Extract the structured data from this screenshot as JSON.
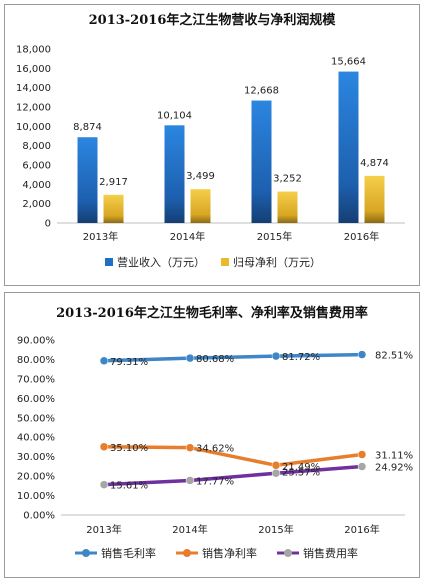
{
  "chart_data": [
    {
      "type": "bar",
      "title": "2013-2016年之江生物营收与净利润规模",
      "categories": [
        "2013年",
        "2014年",
        "2015年",
        "2016年"
      ],
      "series": [
        {
          "name": "营业收入（万元）",
          "values": [
            8874,
            10104,
            12668,
            15664
          ],
          "labels": [
            "8,874",
            "10,104",
            "12,668",
            "15,664"
          ],
          "color": "#1f6fc7"
        },
        {
          "name": "归母净利（万元）",
          "values": [
            2917,
            3499,
            3252,
            4874
          ],
          "labels": [
            "2,917",
            "3,499",
            "3,252",
            "4,874"
          ],
          "color": "#e8b92f"
        }
      ],
      "ylim": [
        0,
        18000
      ],
      "yticks": [
        0,
        2000,
        4000,
        6000,
        8000,
        10000,
        12000,
        14000,
        16000,
        18000
      ],
      "ytick_labels": [
        "0",
        "2,000",
        "4,000",
        "6,000",
        "8,000",
        "10,000",
        "12,000",
        "14,000",
        "16,000",
        "18,000"
      ],
      "grid": false,
      "legend_position": "bottom"
    },
    {
      "type": "line",
      "title": "2013-2016年之江生物毛利率、净利率及销售费用率",
      "categories": [
        "2013年",
        "2014年",
        "2015年",
        "2016年"
      ],
      "series": [
        {
          "name": "销售毛利率",
          "values": [
            79.31,
            80.68,
            81.72,
            82.51
          ],
          "labels": [
            "79.31%",
            "80.68%",
            "81.72%",
            "82.51%"
          ],
          "color": "#3f86c6"
        },
        {
          "name": "销售净利率",
          "values": [
            35.1,
            34.62,
            25.57,
            31.11
          ],
          "labels": [
            "35.10%",
            "34.62%",
            "25.57%",
            "31.11%"
          ],
          "color": "#e67e2e"
        },
        {
          "name": "销售费用率",
          "values": [
            15.61,
            17.77,
            21.49,
            24.92
          ],
          "labels": [
            "15.61%",
            "17.77%",
            "21.49%",
            "24.92%"
          ],
          "color": "#7030a0"
        }
      ],
      "marker_color": "#a6a6a6",
      "ylim": [
        0,
        90
      ],
      "yticks": [
        0,
        10,
        20,
        30,
        40,
        50,
        60,
        70,
        80,
        90
      ],
      "ytick_labels": [
        "0.00%",
        "10.00%",
        "20.00%",
        "30.00%",
        "40.00%",
        "50.00%",
        "60.00%",
        "70.00%",
        "80.00%",
        "90.00%"
      ],
      "grid": false,
      "legend_position": "bottom"
    }
  ]
}
